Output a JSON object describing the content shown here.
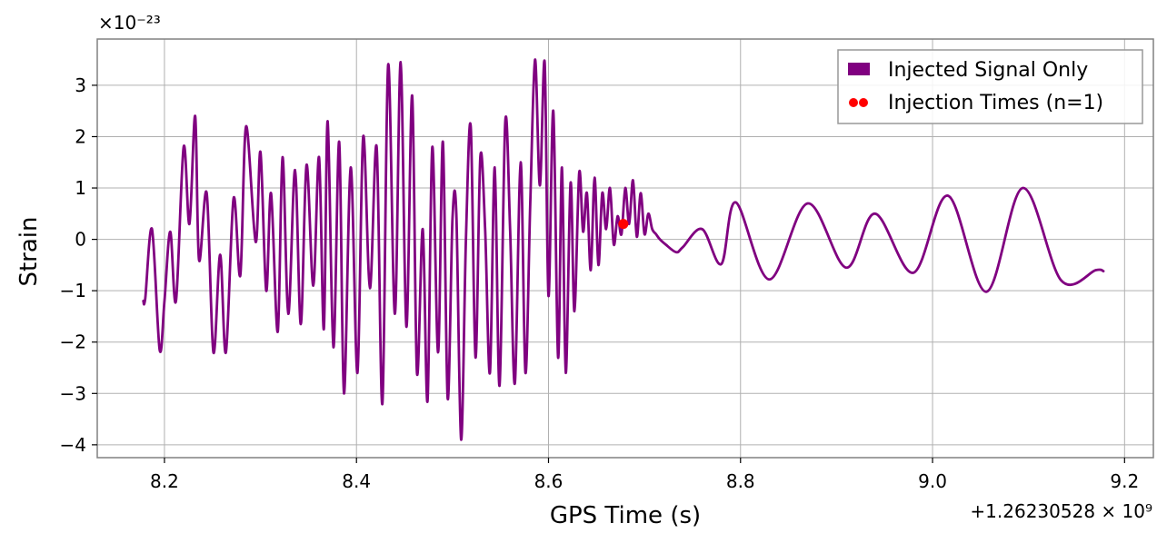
{
  "chart_data": {
    "type": "line",
    "xlabel": "GPS Time (s)",
    "ylabel": "Strain",
    "x_offset_label": "+1.26230528 × 10⁹",
    "y_multiplier_label": "×10⁻²³",
    "xlim": [
      8.13,
      9.23
    ],
    "ylim": [
      -4.25,
      3.9
    ],
    "xticks": [
      8.2,
      8.4,
      8.6,
      8.8,
      9.0,
      9.2
    ],
    "xtick_labels": [
      "8.2",
      "8.4",
      "8.6",
      "8.8",
      "9.0",
      "9.2"
    ],
    "yticks": [
      -4,
      -3,
      -2,
      -1,
      0,
      1,
      2,
      3
    ],
    "ytick_labels": [
      "−4",
      "−3",
      "−2",
      "−1",
      "0",
      "1",
      "2",
      "3"
    ],
    "grid": true,
    "legend_position": "top-right",
    "series": [
      {
        "name": "Injected Signal Only",
        "color": "#800080",
        "x": [
          8.178,
          8.18,
          8.187,
          8.195,
          8.2,
          8.206,
          8.212,
          8.22,
          8.226,
          8.232,
          8.236,
          8.244,
          8.251,
          8.258,
          8.264,
          8.272,
          8.279,
          8.285,
          8.295,
          8.3,
          8.306,
          8.311,
          8.318,
          8.323,
          8.329,
          8.336,
          8.342,
          8.348,
          8.355,
          8.361,
          8.366,
          8.37,
          8.376,
          8.382,
          8.387,
          8.394,
          8.401,
          8.407,
          8.414,
          8.421,
          8.427,
          8.433,
          8.44,
          8.446,
          8.452,
          8.458,
          8.463,
          8.469,
          8.474,
          8.479,
          8.485,
          8.49,
          8.495,
          8.5,
          8.504,
          8.509,
          8.514,
          8.519,
          8.524,
          8.529,
          8.534,
          8.539,
          8.544,
          8.549,
          8.555,
          8.56,
          8.565,
          8.571,
          8.576,
          8.581,
          8.586,
          8.591,
          8.596,
          8.6,
          8.605,
          8.61,
          8.614,
          8.618,
          8.623,
          8.627,
          8.632,
          8.636,
          8.64,
          8.644,
          8.648,
          8.652,
          8.656,
          8.66,
          8.664,
          8.668,
          8.672,
          8.676,
          8.68,
          8.684,
          8.688,
          8.692,
          8.696,
          8.7,
          8.704,
          8.708,
          8.712,
          8.716,
          8.722,
          8.733,
          8.74,
          8.76,
          8.78,
          8.795,
          8.83,
          8.87,
          8.91,
          8.94,
          8.98,
          9.016,
          9.056,
          9.094,
          9.134,
          9.17,
          9.178
        ],
        "y": [
          -1.2,
          -1.15,
          0.2,
          -2.15,
          -1.2,
          0.15,
          -1.2,
          1.8,
          0.3,
          2.4,
          -0.4,
          0.9,
          -2.2,
          -0.3,
          -2.2,
          0.8,
          -0.7,
          2.2,
          -0.05,
          1.7,
          -1.0,
          0.9,
          -1.8,
          1.6,
          -1.45,
          1.35,
          -1.65,
          1.45,
          -0.9,
          1.6,
          -1.75,
          2.3,
          -2.1,
          1.9,
          -3.0,
          1.4,
          -2.6,
          2.0,
          -0.95,
          1.8,
          -3.2,
          3.4,
          -1.45,
          3.45,
          -1.7,
          2.8,
          -2.6,
          0.2,
          -3.15,
          1.8,
          -2.2,
          1.9,
          -3.1,
          0.4,
          0.5,
          -3.9,
          0.0,
          2.2,
          -2.3,
          1.6,
          0.2,
          -2.6,
          1.4,
          -2.85,
          2.3,
          0.2,
          -2.8,
          1.5,
          -2.6,
          0.7,
          3.5,
          1.05,
          3.45,
          -1.1,
          2.5,
          -2.3,
          1.4,
          -2.6,
          1.1,
          -1.4,
          1.3,
          0.15,
          0.9,
          -0.6,
          1.2,
          -0.5,
          0.9,
          0.2,
          1.0,
          -0.1,
          0.45,
          0.1,
          1.0,
          0.3,
          1.15,
          0.05,
          0.9,
          0.1,
          0.5,
          0.2,
          0.1,
          0.0,
          -0.1,
          -0.25,
          -0.15,
          0.2,
          -0.48,
          0.72,
          -0.78,
          0.7,
          -0.55,
          0.5,
          -0.65,
          0.85,
          -1.02,
          1.0,
          -0.8,
          -0.6,
          -0.62
        ]
      }
    ],
    "markers": {
      "name": "Injection Times (n=1)",
      "color": "#ff0000",
      "x": [
        8.678
      ],
      "y": [
        0.3
      ]
    }
  }
}
